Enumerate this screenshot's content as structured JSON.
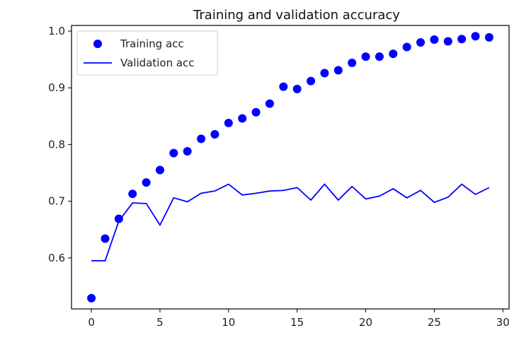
{
  "chart_data": {
    "type": "line",
    "title": "Training and validation accuracy",
    "xlabel": "",
    "ylabel": "",
    "xlim": [
      -1.45,
      30.45
    ],
    "ylim": [
      0.51,
      1.01
    ],
    "x_ticks": [
      0,
      5,
      10,
      15,
      20,
      25,
      30
    ],
    "x_tick_labels": [
      "0",
      "5",
      "10",
      "15",
      "20",
      "25",
      "30"
    ],
    "y_ticks": [
      0.6,
      0.7,
      0.8,
      0.9,
      1.0
    ],
    "y_tick_labels": [
      "0.6",
      "0.7",
      "0.8",
      "0.9",
      "1.0"
    ],
    "grid": false,
    "legend_position": "top-left",
    "x": [
      0,
      1,
      2,
      3,
      4,
      5,
      6,
      7,
      8,
      9,
      10,
      11,
      12,
      13,
      14,
      15,
      16,
      17,
      18,
      19,
      20,
      21,
      22,
      23,
      24,
      25,
      26,
      27,
      28,
      29
    ],
    "series": [
      {
        "name": "Training acc",
        "style": "dots",
        "color": "#0000ff",
        "values": [
          0.529,
          0.634,
          0.669,
          0.713,
          0.733,
          0.755,
          0.785,
          0.788,
          0.81,
          0.818,
          0.838,
          0.846,
          0.857,
          0.872,
          0.902,
          0.898,
          0.912,
          0.926,
          0.931,
          0.944,
          0.955,
          0.955,
          0.96,
          0.972,
          0.98,
          0.985,
          0.982,
          0.986,
          0.991,
          0.989
        ]
      },
      {
        "name": "Validation acc",
        "style": "line",
        "color": "#0000ff",
        "values": [
          0.595,
          0.595,
          0.665,
          0.697,
          0.696,
          0.658,
          0.706,
          0.699,
          0.714,
          0.718,
          0.73,
          0.711,
          0.714,
          0.718,
          0.719,
          0.724,
          0.702,
          0.73,
          0.702,
          0.726,
          0.704,
          0.709,
          0.722,
          0.706,
          0.719,
          0.698,
          0.707,
          0.73,
          0.712,
          0.724
        ]
      }
    ]
  }
}
